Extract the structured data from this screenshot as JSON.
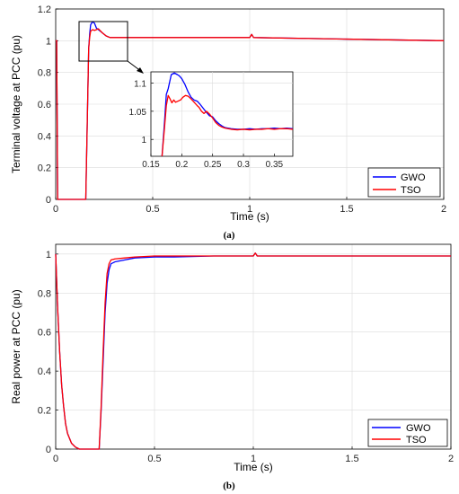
{
  "chart_data": [
    {
      "type": "line",
      "caption": "(a)",
      "xlabel": "Time (s)",
      "ylabel": "Terminal voltage at PCC (pu)",
      "xlim": [
        0,
        2
      ],
      "ylim": [
        0,
        1.2
      ],
      "xticks": [
        0,
        0.5,
        1,
        1.5,
        2
      ],
      "xtick_labels": [
        "0",
        "0.5",
        "1",
        "1.5",
        "2"
      ],
      "yticks": [
        0,
        0.2,
        0.4,
        0.6,
        0.8,
        1,
        1.2
      ],
      "ytick_labels": [
        "0",
        "0.2",
        "0.4",
        "0.6",
        "0.8",
        "1",
        "1.2"
      ],
      "grid": true,
      "legend_position": "bottom-right",
      "series": [
        {
          "name": "GWO",
          "color": "#0000ff",
          "points": [
            [
              0,
              1.0
            ],
            [
              0.005,
              1.0
            ],
            [
              0.01,
              0.0
            ],
            [
              0.15,
              0.0
            ],
            [
              0.155,
              0.0
            ],
            [
              0.17,
              0.95
            ],
            [
              0.175,
              1.04
            ],
            [
              0.18,
              1.1
            ],
            [
              0.185,
              1.11
            ],
            [
              0.19,
              1.12
            ],
            [
              0.2,
              1.11
            ],
            [
              0.21,
              1.08
            ],
            [
              0.22,
              1.07
            ],
            [
              0.24,
              1.05
            ],
            [
              0.26,
              1.03
            ],
            [
              0.28,
              1.02
            ],
            [
              0.32,
              1.02
            ],
            [
              0.5,
              1.02
            ],
            [
              1.0,
              1.02
            ],
            [
              1.01,
              1.04
            ],
            [
              1.02,
              1.02
            ],
            [
              1.5,
              1.01
            ],
            [
              2.0,
              1.0
            ]
          ]
        },
        {
          "name": "TSO",
          "color": "#ff0000",
          "points": [
            [
              0,
              1.0
            ],
            [
              0.005,
              1.0
            ],
            [
              0.01,
              0.0
            ],
            [
              0.15,
              0.0
            ],
            [
              0.155,
              0.0
            ],
            [
              0.17,
              0.95
            ],
            [
              0.175,
              1.02
            ],
            [
              0.18,
              1.06
            ],
            [
              0.19,
              1.07
            ],
            [
              0.2,
              1.065
            ],
            [
              0.21,
              1.07
            ],
            [
              0.22,
              1.075
            ],
            [
              0.24,
              1.05
            ],
            [
              0.26,
              1.03
            ],
            [
              0.28,
              1.02
            ],
            [
              0.32,
              1.02
            ],
            [
              0.5,
              1.02
            ],
            [
              1.0,
              1.02
            ],
            [
              1.01,
              1.04
            ],
            [
              1.02,
              1.02
            ],
            [
              1.5,
              1.01
            ],
            [
              2.0,
              1.0
            ]
          ]
        }
      ],
      "inset": {
        "xlim": [
          0.15,
          0.38
        ],
        "ylim": [
          0.97,
          1.12
        ],
        "xticks": [
          0.15,
          0.2,
          0.25,
          0.3,
          0.35
        ],
        "xtick_labels": [
          "0.15",
          "0.2",
          "0.25",
          "0.3",
          "0.35"
        ],
        "yticks": [
          1,
          1.05,
          1.1
        ],
        "ytick_labels": [
          "1",
          "1.05",
          "1.1"
        ],
        "zoom_box": {
          "x": [
            0.14,
            0.3
          ],
          "y": [
            1.0,
            1.13
          ]
        },
        "series": [
          {
            "name": "GWO",
            "color": "#0000ff",
            "points": [
              [
                0.168,
                0.97
              ],
              [
                0.172,
                1.03
              ],
              [
                0.175,
                1.08
              ],
              [
                0.178,
                1.09
              ],
              [
                0.18,
                1.1
              ],
              [
                0.183,
                1.115
              ],
              [
                0.188,
                1.118
              ],
              [
                0.193,
                1.115
              ],
              [
                0.196,
                1.113
              ],
              [
                0.2,
                1.108
              ],
              [
                0.205,
                1.098
              ],
              [
                0.21,
                1.085
              ],
              [
                0.215,
                1.075
              ],
              [
                0.22,
                1.07
              ],
              [
                0.225,
                1.068
              ],
              [
                0.23,
                1.062
              ],
              [
                0.235,
                1.055
              ],
              [
                0.24,
                1.048
              ],
              [
                0.245,
                1.042
              ],
              [
                0.25,
                1.04
              ],
              [
                0.255,
                1.033
              ],
              [
                0.26,
                1.028
              ],
              [
                0.265,
                1.024
              ],
              [
                0.27,
                1.021
              ],
              [
                0.28,
                1.019
              ],
              [
                0.29,
                1.018
              ],
              [
                0.3,
                1.018
              ],
              [
                0.31,
                1.019
              ],
              [
                0.32,
                1.018
              ],
              [
                0.33,
                1.019
              ],
              [
                0.34,
                1.019
              ],
              [
                0.35,
                1.02
              ],
              [
                0.36,
                1.019
              ],
              [
                0.37,
                1.02
              ],
              [
                0.38,
                1.019
              ]
            ]
          },
          {
            "name": "TSO",
            "color": "#ff0000",
            "points": [
              [
                0.168,
                0.97
              ],
              [
                0.172,
                1.02
              ],
              [
                0.175,
                1.06
              ],
              [
                0.178,
                1.078
              ],
              [
                0.181,
                1.072
              ],
              [
                0.184,
                1.065
              ],
              [
                0.187,
                1.07
              ],
              [
                0.19,
                1.066
              ],
              [
                0.194,
                1.068
              ],
              [
                0.198,
                1.07
              ],
              [
                0.202,
                1.075
              ],
              [
                0.206,
                1.078
              ],
              [
                0.21,
                1.077
              ],
              [
                0.215,
                1.072
              ],
              [
                0.22,
                1.066
              ],
              [
                0.225,
                1.06
              ],
              [
                0.228,
                1.057
              ],
              [
                0.232,
                1.05
              ],
              [
                0.236,
                1.046
              ],
              [
                0.24,
                1.05
              ],
              [
                0.245,
                1.045
              ],
              [
                0.25,
                1.038
              ],
              [
                0.255,
                1.03
              ],
              [
                0.26,
                1.025
              ],
              [
                0.265,
                1.022
              ],
              [
                0.27,
                1.02
              ],
              [
                0.28,
                1.018
              ],
              [
                0.29,
                1.017
              ],
              [
                0.3,
                1.018
              ],
              [
                0.31,
                1.017
              ],
              [
                0.32,
                1.018
              ],
              [
                0.33,
                1.018
              ],
              [
                0.34,
                1.019
              ],
              [
                0.35,
                1.018
              ],
              [
                0.36,
                1.019
              ],
              [
                0.37,
                1.019
              ],
              [
                0.38,
                1.018
              ]
            ]
          }
        ]
      }
    },
    {
      "type": "line",
      "caption": "(b)",
      "xlabel": "Time (s)",
      "ylabel": "Real power at PCC (pu)",
      "xlim": [
        0,
        2
      ],
      "ylim": [
        0,
        1.05
      ],
      "xticks": [
        0,
        0.5,
        1,
        1.5,
        2
      ],
      "xtick_labels": [
        "0",
        "0.5",
        "1",
        "1.5",
        "2"
      ],
      "yticks": [
        0,
        0.2,
        0.4,
        0.6,
        0.8,
        1
      ],
      "ytick_labels": [
        "0",
        "0.2",
        "0.4",
        "0.6",
        "0.8",
        "1"
      ],
      "grid": true,
      "legend_position": "bottom-right",
      "series": [
        {
          "name": "GWO",
          "color": "#0000ff",
          "points": [
            [
              0,
              1.0
            ],
            [
              0.01,
              0.72
            ],
            [
              0.02,
              0.5
            ],
            [
              0.03,
              0.33
            ],
            [
              0.04,
              0.22
            ],
            [
              0.05,
              0.13
            ],
            [
              0.06,
              0.08
            ],
            [
              0.08,
              0.03
            ],
            [
              0.1,
              0.01
            ],
            [
              0.12,
              0.0
            ],
            [
              0.2,
              0.0
            ],
            [
              0.22,
              0.0
            ],
            [
              0.23,
              0.2
            ],
            [
              0.24,
              0.45
            ],
            [
              0.25,
              0.7
            ],
            [
              0.26,
              0.85
            ],
            [
              0.27,
              0.92
            ],
            [
              0.28,
              0.95
            ],
            [
              0.3,
              0.96
            ],
            [
              0.35,
              0.97
            ],
            [
              0.4,
              0.98
            ],
            [
              0.5,
              0.985
            ],
            [
              0.6,
              0.985
            ],
            [
              0.8,
              0.99
            ],
            [
              1.0,
              0.99
            ],
            [
              1.01,
              1.005
            ],
            [
              1.02,
              0.99
            ],
            [
              1.5,
              0.99
            ],
            [
              2.0,
              0.99
            ]
          ]
        },
        {
          "name": "TSO",
          "color": "#ff0000",
          "points": [
            [
              0,
              1.0
            ],
            [
              0.01,
              0.72
            ],
            [
              0.02,
              0.5
            ],
            [
              0.03,
              0.33
            ],
            [
              0.04,
              0.22
            ],
            [
              0.05,
              0.13
            ],
            [
              0.06,
              0.08
            ],
            [
              0.08,
              0.03
            ],
            [
              0.1,
              0.01
            ],
            [
              0.12,
              0.0
            ],
            [
              0.2,
              0.0
            ],
            [
              0.22,
              0.0
            ],
            [
              0.23,
              0.22
            ],
            [
              0.24,
              0.5
            ],
            [
              0.25,
              0.75
            ],
            [
              0.26,
              0.9
            ],
            [
              0.27,
              0.95
            ],
            [
              0.28,
              0.97
            ],
            [
              0.3,
              0.975
            ],
            [
              0.35,
              0.98
            ],
            [
              0.4,
              0.985
            ],
            [
              0.5,
              0.99
            ],
            [
              0.6,
              0.99
            ],
            [
              0.8,
              0.99
            ],
            [
              1.0,
              0.99
            ],
            [
              1.01,
              1.005
            ],
            [
              1.02,
              0.99
            ],
            [
              1.5,
              0.99
            ],
            [
              2.0,
              0.99
            ]
          ]
        }
      ]
    }
  ]
}
